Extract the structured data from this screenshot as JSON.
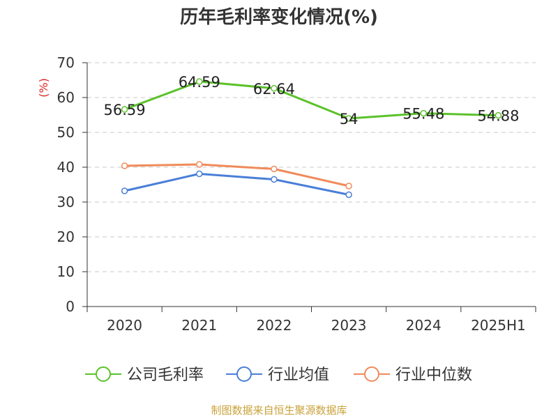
{
  "title": "历年毛利率变化情况(%)",
  "source_note": "制图数据来自恒生聚源数据库",
  "chart_data": {
    "type": "line",
    "title": "历年毛利率变化情况(%)",
    "ylabel": "(%)",
    "categories": [
      "2020",
      "2021",
      "2022",
      "2023",
      "2024",
      "2025H1"
    ],
    "yticks": [
      "0",
      "10",
      "20",
      "30",
      "40",
      "50",
      "60",
      "70"
    ],
    "ylim": [
      0,
      70
    ],
    "grid": true,
    "legend_position": "bottom",
    "series": [
      {
        "name": "公司毛利率",
        "color": "#5bc22a",
        "values": [
          56.59,
          64.59,
          62.64,
          54,
          55.48,
          54.88
        ],
        "labels": [
          "56.59",
          "64.59",
          "62.64",
          "54",
          "55.48",
          "54.88"
        ]
      },
      {
        "name": "行业均值",
        "color": "#4a7fd8",
        "values": [
          33.2,
          38.1,
          36.5,
          32.1,
          null,
          null
        ]
      },
      {
        "name": "行业中位数",
        "color": "#f08a5a",
        "values": [
          40.4,
          40.8,
          39.5,
          34.6,
          null,
          null
        ]
      }
    ]
  }
}
